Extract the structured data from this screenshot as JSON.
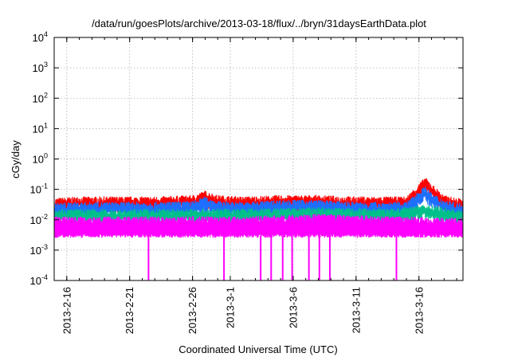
{
  "chart_data": {
    "type": "line",
    "title": "/data/run/goesPlots/archive/2013-03-18/flux/../bryn/31daysEarthData.plot",
    "xlabel": "Coordinated Universal Time (UTC)",
    "ylabel": "cGy/day",
    "yscale": "log",
    "ylim": [
      0.0001,
      10000
    ],
    "yticks": [
      {
        "value": 0.0001,
        "base": "10",
        "exp": "-4"
      },
      {
        "value": 0.001,
        "base": "10",
        "exp": "-3"
      },
      {
        "value": 0.01,
        "base": "10",
        "exp": "-2"
      },
      {
        "value": 0.1,
        "base": "10",
        "exp": "-1"
      },
      {
        "value": 1,
        "base": "10",
        "exp": "0"
      },
      {
        "value": 10,
        "base": "10",
        "exp": "1"
      },
      {
        "value": 100,
        "base": "10",
        "exp": "2"
      },
      {
        "value": 1000,
        "base": "10",
        "exp": "3"
      },
      {
        "value": 10000,
        "base": "10",
        "exp": "4"
      }
    ],
    "xlim": [
      "2013-02-15",
      "2013-03-19"
    ],
    "xticks": [
      "2013-2-16",
      "2013-2-21",
      "2013-2-26",
      "2013-3-1",
      "2013-3-6",
      "2013-3-11",
      "2013-3-16"
    ],
    "grid": true,
    "legend": "none",
    "series": [
      {
        "color": "#ff0000",
        "x": [
          "2013-02-15",
          "2013-02-17",
          "2013-02-20",
          "2013-02-23",
          "2013-02-26",
          "2013-02-27",
          "2013-02-28",
          "2013-03-02",
          "2013-03-05",
          "2013-03-08",
          "2013-03-11",
          "2013-03-14",
          "2013-03-15",
          "2013-03-16",
          "2013-03-16T12:00",
          "2013-03-17",
          "2013-03-18",
          "2013-03-19"
        ],
        "values": [
          0.04,
          0.045,
          0.045,
          0.045,
          0.05,
          0.07,
          0.05,
          0.045,
          0.05,
          0.05,
          0.045,
          0.045,
          0.045,
          0.12,
          0.2,
          0.12,
          0.05,
          0.04
        ]
      },
      {
        "color": "#1e6fff",
        "x": [
          "2013-02-15",
          "2013-02-17",
          "2013-02-20",
          "2013-02-23",
          "2013-02-26",
          "2013-02-27",
          "2013-02-28",
          "2013-03-02",
          "2013-03-05",
          "2013-03-08",
          "2013-03-11",
          "2013-03-14",
          "2013-03-15",
          "2013-03-16",
          "2013-03-16T12:00",
          "2013-03-17",
          "2013-03-18",
          "2013-03-19"
        ],
        "values": [
          0.028,
          0.03,
          0.03,
          0.03,
          0.032,
          0.045,
          0.032,
          0.03,
          0.035,
          0.035,
          0.03,
          0.03,
          0.03,
          0.07,
          0.1,
          0.06,
          0.035,
          0.028
        ]
      },
      {
        "color": "#00c08a",
        "x": [
          "2013-02-15",
          "2013-02-20",
          "2013-02-26",
          "2013-03-02",
          "2013-03-08",
          "2013-03-14",
          "2013-03-16T12:00",
          "2013-03-19"
        ],
        "values": [
          0.018,
          0.017,
          0.018,
          0.018,
          0.02,
          0.018,
          0.025,
          0.017
        ]
      },
      {
        "color": "#ff00ff",
        "x": [
          "2013-02-15",
          "2013-02-20",
          "2013-02-26",
          "2013-03-02",
          "2013-03-08",
          "2013-03-14",
          "2013-03-19"
        ],
        "values": [
          0.01,
          0.01,
          0.01,
          0.01,
          0.012,
          0.01,
          0.009
        ],
        "floor": 0.003,
        "dropouts": [
          "2013-02-22T12:00",
          "2013-02-28T12:00",
          "2013-03-03T10:00",
          "2013-03-04T06:00",
          "2013-03-05T04:00",
          "2013-03-05T22:00",
          "2013-03-07T06:00",
          "2013-03-08T02:00",
          "2013-03-08T22:00",
          "2013-03-14T05:00"
        ]
      }
    ]
  }
}
